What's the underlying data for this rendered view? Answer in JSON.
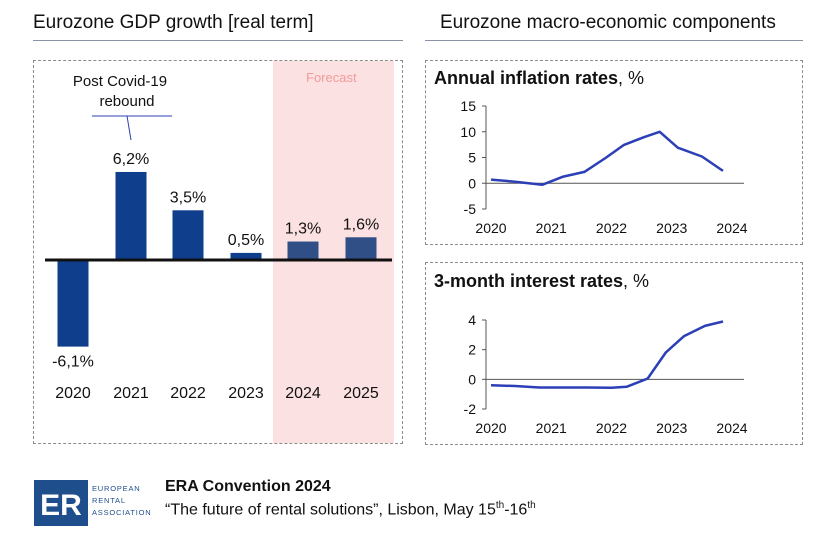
{
  "left_section_title": "Eurozone GDP growth [real term]",
  "right_section_title": "Eurozone macro-economic components",
  "forecast_label": "Forecast",
  "annotation": {
    "line1": "Post Covid-19",
    "line2": "rebound"
  },
  "inflation_title": {
    "bold": "Annual inflation rates",
    "unit": ", %"
  },
  "interest_title": {
    "bold": "3-month interest rates",
    "unit": ", %"
  },
  "logo": {
    "letters": "ER",
    "words": [
      "EUROPEAN",
      "RENTAL",
      "ASSOCIATION"
    ]
  },
  "footer": {
    "title": "ERA Convention 2024",
    "subtitle_main": "“The future of rental solutions”, Lisbon, May 15",
    "sup1": "th",
    "subtitle_mid": "-16",
    "sup2": "th"
  },
  "colors": {
    "bar_actual": "#0e3e8c",
    "bar_forecast": "#2f4f86",
    "line": "#2c3fb6",
    "forecast_band": "#fbe1e1",
    "forecast_text": "#f29b9b"
  },
  "chart_data": [
    {
      "type": "bar",
      "categories": [
        "2020",
        "2021",
        "2022",
        "2023",
        "2024",
        "2025"
      ],
      "values": [
        -6.1,
        6.2,
        3.5,
        0.5,
        1.3,
        1.6
      ],
      "data_labels": [
        "-6,1%",
        "6,2%",
        "3,5%",
        "0,5%",
        "1,3%",
        "1,6%"
      ],
      "forecast_categories": [
        "2024",
        "2025"
      ],
      "title": "Eurozone GDP growth [real term]"
    },
    {
      "type": "line",
      "title": "Annual inflation rates, %",
      "x": [
        2020.0,
        2020.4,
        2020.85,
        2021.2,
        2021.55,
        2021.9,
        2022.2,
        2022.55,
        2022.8,
        2023.1,
        2023.5,
        2023.85
      ],
      "y": [
        0.7,
        0.3,
        -0.3,
        1.3,
        2.2,
        4.9,
        7.4,
        9.0,
        10.0,
        6.9,
        5.2,
        2.4
      ],
      "ylim": [
        -5,
        15
      ],
      "yticks": [
        "-5",
        "0",
        "5",
        "10",
        "15"
      ],
      "xticks": [
        "2020",
        "2021",
        "2022",
        "2023",
        "2024"
      ]
    },
    {
      "type": "line",
      "title": "3-month interest rates, %",
      "x": [
        2020.0,
        2020.4,
        2020.8,
        2021.2,
        2021.6,
        2022.0,
        2022.25,
        2022.6,
        2022.9,
        2023.2,
        2023.55,
        2023.85
      ],
      "y": [
        -0.4,
        -0.45,
        -0.55,
        -0.55,
        -0.55,
        -0.57,
        -0.5,
        0.05,
        1.8,
        2.9,
        3.6,
        3.9
      ],
      "ylim": [
        -2,
        4
      ],
      "yticks": [
        "-2",
        "0",
        "2",
        "4"
      ],
      "xticks": [
        "2020",
        "2021",
        "2022",
        "2023",
        "2024"
      ]
    }
  ]
}
